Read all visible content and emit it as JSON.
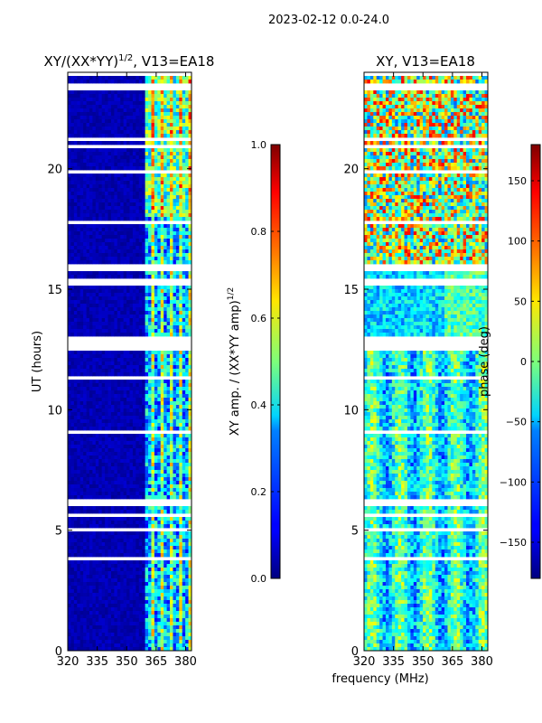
{
  "figure": {
    "suptitle": "2023-02-12 0.0-24.0",
    "xlabel": "frequency (MHz)"
  },
  "chart_data": [
    {
      "type": "heatmap",
      "title": "XY/(XX*YY)",
      "title_exponent": "1/2",
      "title_suffix": ", V13=EA18",
      "xlabel": "",
      "ylabel": "UT (hours)",
      "xlim": [
        320,
        383
      ],
      "ylim": [
        0,
        24
      ],
      "xticks": [
        320,
        335,
        350,
        365,
        380
      ],
      "yticks": [
        0,
        5,
        10,
        15,
        20
      ],
      "colormap": "jet",
      "colorbar": {
        "label": "XY amp. / (XX*YY amp)",
        "label_exponent": "1/2",
        "range": [
          0.0,
          1.0
        ],
        "ticks": [
          0.0,
          0.2,
          0.4,
          0.6,
          0.8,
          1.0
        ],
        "tick_labels": [
          "0.0",
          "0.2",
          "0.4",
          "0.6",
          "0.8",
          "1.0"
        ]
      },
      "notes": "Low normalized amplitude (~0.0-0.1) for 320-360 MHz; elevated and variable amplitude (~0.2-0.8) for 360-380 MHz, strongest after 18 UT. Flagged (white) gaps near 12.4-13.0 UT, 6.0-6.3 UT, 15.3-16.0 UT and many thin rows."
    },
    {
      "type": "heatmap",
      "title": "XY, V13=EA18",
      "xlabel": "",
      "ylabel": "",
      "xlim": [
        320,
        383
      ],
      "ylim": [
        0,
        24
      ],
      "xticks": [
        320,
        335,
        350,
        365,
        380
      ],
      "yticks": [
        0,
        5,
        10,
        15,
        20
      ],
      "colormap": "jet",
      "colorbar": {
        "label": "phase (deg)",
        "range": [
          -180,
          180
        ],
        "ticks": [
          -150,
          -100,
          -50,
          0,
          50,
          100,
          150
        ],
        "tick_labels": [
          "−150",
          "−100",
          "−50",
          "0",
          "50",
          "100",
          "150"
        ]
      },
      "notes": "Phase mostly between -90 and +60 deg with noisy structure; large variability after 16 UT; flagged gaps matching left panel."
    }
  ]
}
